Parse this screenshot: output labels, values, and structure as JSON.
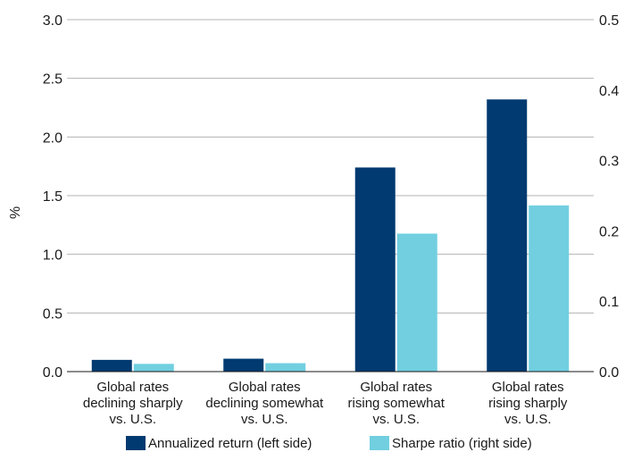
{
  "chart_data": {
    "type": "bar",
    "title": "",
    "xlabel": "",
    "ylabel": "%",
    "y2label": "",
    "categories": [
      [
        "Global rates",
        "declining sharply",
        "vs. U.S."
      ],
      [
        "Global rates",
        "declining somewhat",
        "vs. U.S."
      ],
      [
        "Global rates",
        "rising somewhat",
        "vs. U.S."
      ],
      [
        "Global rates",
        "rising sharply",
        "vs. U.S."
      ]
    ],
    "series": [
      {
        "name": "Annualized return (left side)",
        "axis": "left",
        "color": "#003a70",
        "values": [
          0.1,
          0.11,
          1.74,
          2.32
        ]
      },
      {
        "name": "Sharpe ratio (right side)",
        "axis": "right",
        "color": "#71cfe0",
        "values": [
          0.011,
          0.012,
          0.196,
          0.236
        ]
      }
    ],
    "ylim": [
      0,
      3.0
    ],
    "yticks": [
      "0.0",
      "0.5",
      "1.0",
      "1.5",
      "2.0",
      "2.5",
      "3.0"
    ],
    "y2lim": [
      0,
      0.5
    ],
    "y2ticks": [
      "0.0",
      "0.1",
      "0.2",
      "0.3",
      "0.4",
      "0.5"
    ],
    "grid": true,
    "legend_position": "bottom"
  }
}
